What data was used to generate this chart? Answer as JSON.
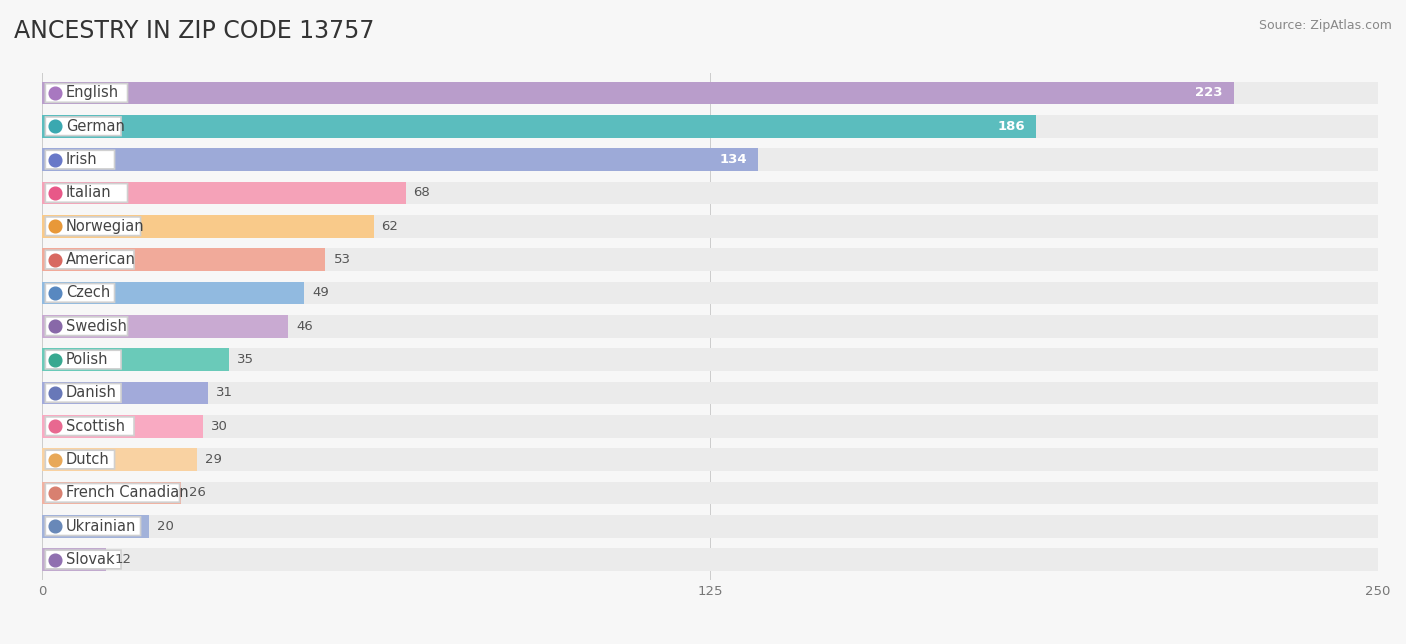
{
  "title": "ANCESTRY IN ZIP CODE 13757",
  "source_text": "Source: ZipAtlas.com",
  "categories": [
    "English",
    "German",
    "Irish",
    "Italian",
    "Norwegian",
    "American",
    "Czech",
    "Swedish",
    "Polish",
    "Danish",
    "Scottish",
    "Dutch",
    "French Canadian",
    "Ukrainian",
    "Slovak"
  ],
  "values": [
    223,
    186,
    134,
    68,
    62,
    53,
    49,
    46,
    35,
    31,
    30,
    29,
    26,
    20,
    12
  ],
  "colors": [
    "#b99dcb",
    "#5bbdbe",
    "#9daad8",
    "#f5a2b8",
    "#f9ca8a",
    "#f1aa9a",
    "#91bae0",
    "#c9aad2",
    "#6acab9",
    "#a2aada",
    "#f9aac2",
    "#f9d2a2",
    "#f1b2a2",
    "#a2b2da",
    "#c1aace"
  ],
  "dot_colors": [
    "#a878c0",
    "#3aa8b0",
    "#6878c8",
    "#e85888",
    "#e89838",
    "#d86860",
    "#5888c0",
    "#8868a8",
    "#38a890",
    "#6878b8",
    "#e86890",
    "#e8a858",
    "#d88070",
    "#6888b8",
    "#9070b0"
  ],
  "xlim": [
    0,
    250
  ],
  "xticks": [
    0,
    125,
    250
  ],
  "bg_color": "#f7f7f7",
  "bar_bg_color": "#ebebeb",
  "title_fontsize": 17,
  "label_fontsize": 10.5,
  "value_fontsize": 9.5
}
